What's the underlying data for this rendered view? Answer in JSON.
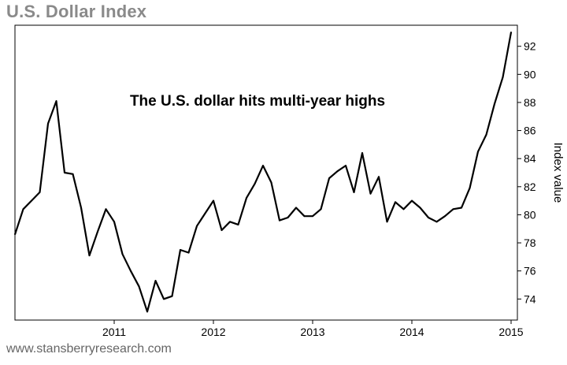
{
  "chart_data": {
    "type": "line",
    "title": "U.S. Dollar Index",
    "annotation": "The U.S. dollar hits multi-year highs",
    "xlabel": "",
    "ylabel": "Index value",
    "x_ticks": [
      "2011",
      "2012",
      "2013",
      "2014",
      "2015"
    ],
    "y_ticks": [
      "74",
      "76",
      "78",
      "80",
      "82",
      "84",
      "86",
      "88",
      "90",
      "92"
    ],
    "xlim": [
      "2010-01",
      "2015-01"
    ],
    "ylim": [
      72.5,
      93.5
    ],
    "grid": false,
    "line_color": "#000000",
    "series": [
      {
        "x": [
          "2010-01",
          "2010-02",
          "2010-03",
          "2010-04",
          "2010-05",
          "2010-06",
          "2010-07",
          "2010-08",
          "2010-09",
          "2010-10",
          "2010-11",
          "2010-12",
          "2011-01",
          "2011-02",
          "2011-03",
          "2011-04",
          "2011-05",
          "2011-06",
          "2011-07",
          "2011-08",
          "2011-09",
          "2011-10",
          "2011-11",
          "2011-12",
          "2012-01",
          "2012-02",
          "2012-03",
          "2012-04",
          "2012-05",
          "2012-06",
          "2012-07",
          "2012-08",
          "2012-09",
          "2012-10",
          "2012-11",
          "2012-12",
          "2013-01",
          "2013-02",
          "2013-03",
          "2013-04",
          "2013-05",
          "2013-06",
          "2013-07",
          "2013-08",
          "2013-09",
          "2013-10",
          "2013-11",
          "2013-12",
          "2014-01",
          "2014-02",
          "2014-03",
          "2014-04",
          "2014-05",
          "2014-06",
          "2014-07",
          "2014-08",
          "2014-09",
          "2014-10",
          "2014-11",
          "2014-12",
          "2015-01"
        ],
        "values": [
          78.6,
          80.4,
          81.0,
          81.6,
          86.5,
          88.1,
          83.0,
          82.9,
          80.5,
          77.1,
          78.8,
          80.4,
          79.5,
          77.2,
          76.0,
          74.9,
          73.1,
          75.3,
          74.0,
          74.2,
          77.5,
          77.3,
          79.2,
          80.1,
          81.0,
          78.9,
          79.5,
          79.3,
          81.2,
          82.2,
          83.5,
          82.3,
          79.6,
          79.8,
          80.5,
          79.9,
          79.9,
          80.4,
          82.6,
          83.1,
          83.5,
          81.6,
          84.4,
          81.5,
          82.7,
          79.5,
          80.9,
          80.4,
          81.0,
          80.5,
          79.8,
          79.5,
          79.9,
          80.4,
          80.5,
          81.9,
          84.5,
          85.7,
          87.9,
          89.8,
          93.0
        ]
      }
    ]
  },
  "footer": {
    "source": "www.stansberryresearch.com"
  }
}
